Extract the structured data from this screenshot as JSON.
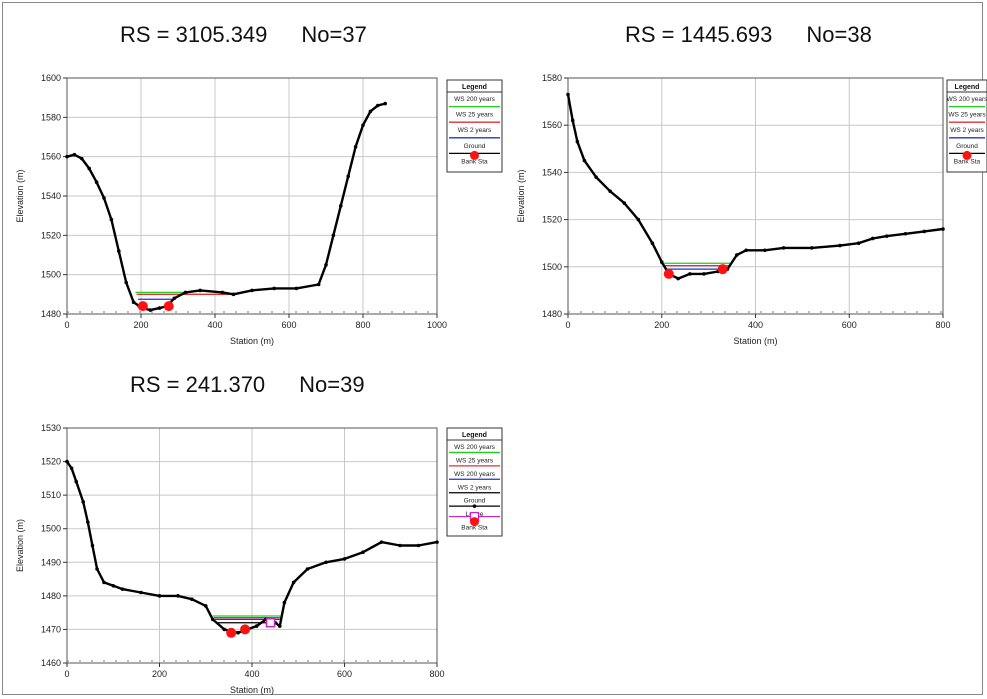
{
  "colors": {
    "ws200": "#22cc22",
    "ws25": "#dd3333",
    "ws2": "#2233cc",
    "ground": "#000000",
    "bank": "#ff1111",
    "levee": "#cc22cc",
    "grid": "#c8c8c8"
  },
  "chart_data": [
    {
      "id": "p1",
      "type": "line",
      "title_rs": "RS = 3105.349",
      "title_no": "No=37",
      "xlabel": "Station (m)",
      "ylabel": "Elevation (m)",
      "xlim": [
        0,
        1000
      ],
      "ylim": [
        1480,
        1600
      ],
      "xticks": [
        0,
        200,
        400,
        600,
        800,
        1000
      ],
      "xtick_labels": [
        "0",
        "200",
        "400",
        "600",
        "800",
        "1000"
      ],
      "yticks": [
        1480,
        1500,
        1520,
        1540,
        1560,
        1580,
        1600
      ],
      "ytick_labels": [
        "1480",
        "1500",
        "1520",
        "1540",
        "1560",
        "1580",
        "1600"
      ],
      "legend_title": "Legend",
      "legend": [
        {
          "label": "WS 200 years",
          "color": "#22cc22",
          "marker": "line"
        },
        {
          "label": "WS 25 years",
          "color": "#dd3333",
          "marker": "line"
        },
        {
          "label": "WS 2 years",
          "color": "#2233cc",
          "marker": "line"
        },
        {
          "label": "Ground",
          "color": "#000000",
          "marker": "dot-line"
        },
        {
          "label": "Bank Sta",
          "color": "#ff1111",
          "marker": "circle"
        }
      ],
      "ground": [
        [
          0,
          1560
        ],
        [
          20,
          1561
        ],
        [
          40,
          1559
        ],
        [
          60,
          1554
        ],
        [
          80,
          1547
        ],
        [
          100,
          1539
        ],
        [
          120,
          1528
        ],
        [
          140,
          1512
        ],
        [
          160,
          1496
        ],
        [
          180,
          1486
        ],
        [
          195,
          1484
        ],
        [
          205,
          1483
        ],
        [
          225,
          1482
        ],
        [
          250,
          1483
        ],
        [
          270,
          1484
        ],
        [
          290,
          1488
        ],
        [
          320,
          1491
        ],
        [
          360,
          1492
        ],
        [
          420,
          1491
        ],
        [
          450,
          1490
        ],
        [
          500,
          1492
        ],
        [
          560,
          1493
        ],
        [
          620,
          1493
        ],
        [
          680,
          1495
        ],
        [
          700,
          1505
        ],
        [
          720,
          1520
        ],
        [
          740,
          1535
        ],
        [
          760,
          1550
        ],
        [
          780,
          1565
        ],
        [
          800,
          1576
        ],
        [
          820,
          1583
        ],
        [
          840,
          1586
        ],
        [
          860,
          1587
        ]
      ],
      "ws": [
        {
          "name": "WS 200 years",
          "color": "#22cc22",
          "elev": 1491,
          "x_range": [
            185,
            315
          ]
        },
        {
          "name": "WS 25 years",
          "color": "#dd3333",
          "elev": 1490,
          "x_range": [
            188,
            440
          ]
        },
        {
          "name": "WS 2 years",
          "color": "#2233cc",
          "elev": 1487.5,
          "x_range": [
            192,
            290
          ]
        }
      ],
      "bank_sta": [
        [
          205,
          1484
        ],
        [
          275,
          1484
        ]
      ]
    },
    {
      "id": "p2",
      "type": "line",
      "title_rs": "RS = 1445.693",
      "title_no": "No=38",
      "xlabel": "Station (m)",
      "ylabel": "Elevation (m)",
      "xlim": [
        0,
        800
      ],
      "ylim": [
        1480,
        1580
      ],
      "xticks": [
        0,
        200,
        400,
        600,
        800
      ],
      "xtick_labels": [
        "0",
        "200",
        "400",
        "600",
        "800"
      ],
      "yticks": [
        1480,
        1500,
        1520,
        1540,
        1560,
        1580
      ],
      "ytick_labels": [
        "1480",
        "1500",
        "1520",
        "1540",
        "1560",
        "1580"
      ],
      "legend_title": "Legend",
      "legend": [
        {
          "label": "WS 200 years",
          "color": "#22cc22",
          "marker": "line"
        },
        {
          "label": "WS 25 years",
          "color": "#dd3333",
          "marker": "line"
        },
        {
          "label": "WS 2 years",
          "color": "#2233cc",
          "marker": "line"
        },
        {
          "label": "Ground",
          "color": "#000000",
          "marker": "dot-line"
        },
        {
          "label": "Bank Sta",
          "color": "#ff1111",
          "marker": "circle"
        }
      ],
      "ground": [
        [
          0,
          1573
        ],
        [
          10,
          1562
        ],
        [
          20,
          1553
        ],
        [
          35,
          1545
        ],
        [
          60,
          1538
        ],
        [
          90,
          1532
        ],
        [
          120,
          1527
        ],
        [
          150,
          1520
        ],
        [
          180,
          1510
        ],
        [
          200,
          1502
        ],
        [
          215,
          1497
        ],
        [
          235,
          1495
        ],
        [
          260,
          1497
        ],
        [
          290,
          1497
        ],
        [
          320,
          1498
        ],
        [
          340,
          1499
        ],
        [
          360,
          1505
        ],
        [
          380,
          1507
        ],
        [
          420,
          1507
        ],
        [
          460,
          1508
        ],
        [
          520,
          1508
        ],
        [
          580,
          1509
        ],
        [
          620,
          1510
        ],
        [
          650,
          1512
        ],
        [
          680,
          1513
        ],
        [
          720,
          1514
        ],
        [
          760,
          1515
        ],
        [
          800,
          1516
        ]
      ],
      "ws": [
        {
          "name": "WS 200 years",
          "color": "#22cc22",
          "elev": 1501.5,
          "x_range": [
            205,
            348
          ]
        },
        {
          "name": "WS 25 years",
          "color": "#dd3333",
          "elev": 1500.5,
          "x_range": [
            207,
            345
          ]
        },
        {
          "name": "WS 2 years",
          "color": "#2233cc",
          "elev": 1499,
          "x_range": [
            210,
            340
          ]
        }
      ],
      "bank_sta": [
        [
          215,
          1497
        ],
        [
          330,
          1499
        ]
      ]
    },
    {
      "id": "p3",
      "type": "line",
      "title_rs": "RS = 241.370",
      "title_no": "No=39",
      "xlabel": "Station (m)",
      "ylabel": "Elevation (m)",
      "xlim": [
        0,
        800
      ],
      "ylim": [
        1460,
        1530
      ],
      "xticks": [
        0,
        200,
        400,
        600,
        800
      ],
      "xtick_labels": [
        "0",
        "200",
        "400",
        "600",
        "800"
      ],
      "yticks": [
        1460,
        1470,
        1480,
        1490,
        1500,
        1510,
        1520,
        1530
      ],
      "ytick_labels": [
        "1460",
        "1470",
        "1480",
        "1490",
        "1500",
        "1510",
        "1520",
        "1530"
      ],
      "legend_title": "Legend",
      "legend": [
        {
          "label": "WS 200 years",
          "color": "#22cc22",
          "marker": "line"
        },
        {
          "label": "WS 25 years",
          "color": "#dd3333",
          "marker": "line"
        },
        {
          "label": "WS 200 years",
          "color": "#2233cc",
          "marker": "line"
        },
        {
          "label": "WS 2 years",
          "color": "#000000",
          "marker": "line"
        },
        {
          "label": "Ground",
          "color": "#000000",
          "marker": "dot-line"
        },
        {
          "label": "Levee",
          "color": "#cc22cc",
          "marker": "square"
        },
        {
          "label": "Bank Sta",
          "color": "#ff1111",
          "marker": "circle"
        }
      ],
      "ground": [
        [
          0,
          1520
        ],
        [
          10,
          1518
        ],
        [
          20,
          1514
        ],
        [
          35,
          1508
        ],
        [
          45,
          1502
        ],
        [
          55,
          1495
        ],
        [
          65,
          1488
        ],
        [
          80,
          1484
        ],
        [
          100,
          1483
        ],
        [
          120,
          1482
        ],
        [
          160,
          1481
        ],
        [
          200,
          1480
        ],
        [
          240,
          1480
        ],
        [
          270,
          1479
        ],
        [
          300,
          1477
        ],
        [
          315,
          1473
        ],
        [
          340,
          1470
        ],
        [
          370,
          1469
        ],
        [
          390,
          1470
        ],
        [
          410,
          1471
        ],
        [
          430,
          1473
        ],
        [
          450,
          1472
        ],
        [
          460,
          1471
        ],
        [
          470,
          1478
        ],
        [
          490,
          1484
        ],
        [
          520,
          1488
        ],
        [
          560,
          1490
        ],
        [
          600,
          1491
        ],
        [
          640,
          1493
        ],
        [
          680,
          1496
        ],
        [
          720,
          1495
        ],
        [
          760,
          1495
        ],
        [
          800,
          1496
        ]
      ],
      "ws": [
        {
          "name": "WS 200 years",
          "color": "#22cc22",
          "elev": 1474,
          "x_range": [
            315,
            465
          ]
        },
        {
          "name": "WS 25 years",
          "color": "#dd3333",
          "elev": 1473.5,
          "x_range": [
            318,
            462
          ]
        },
        {
          "name": "WS 200 years",
          "color": "#2233cc",
          "elev": 1473,
          "x_range": [
            320,
            460
          ]
        },
        {
          "name": "WS 2 years",
          "color": "#000000",
          "elev": 1472,
          "x_range": [
            325,
            455
          ]
        }
      ],
      "levee": [
        [
          440,
          1472
        ]
      ],
      "bank_sta": [
        [
          355,
          1469
        ],
        [
          385,
          1470
        ]
      ]
    }
  ]
}
